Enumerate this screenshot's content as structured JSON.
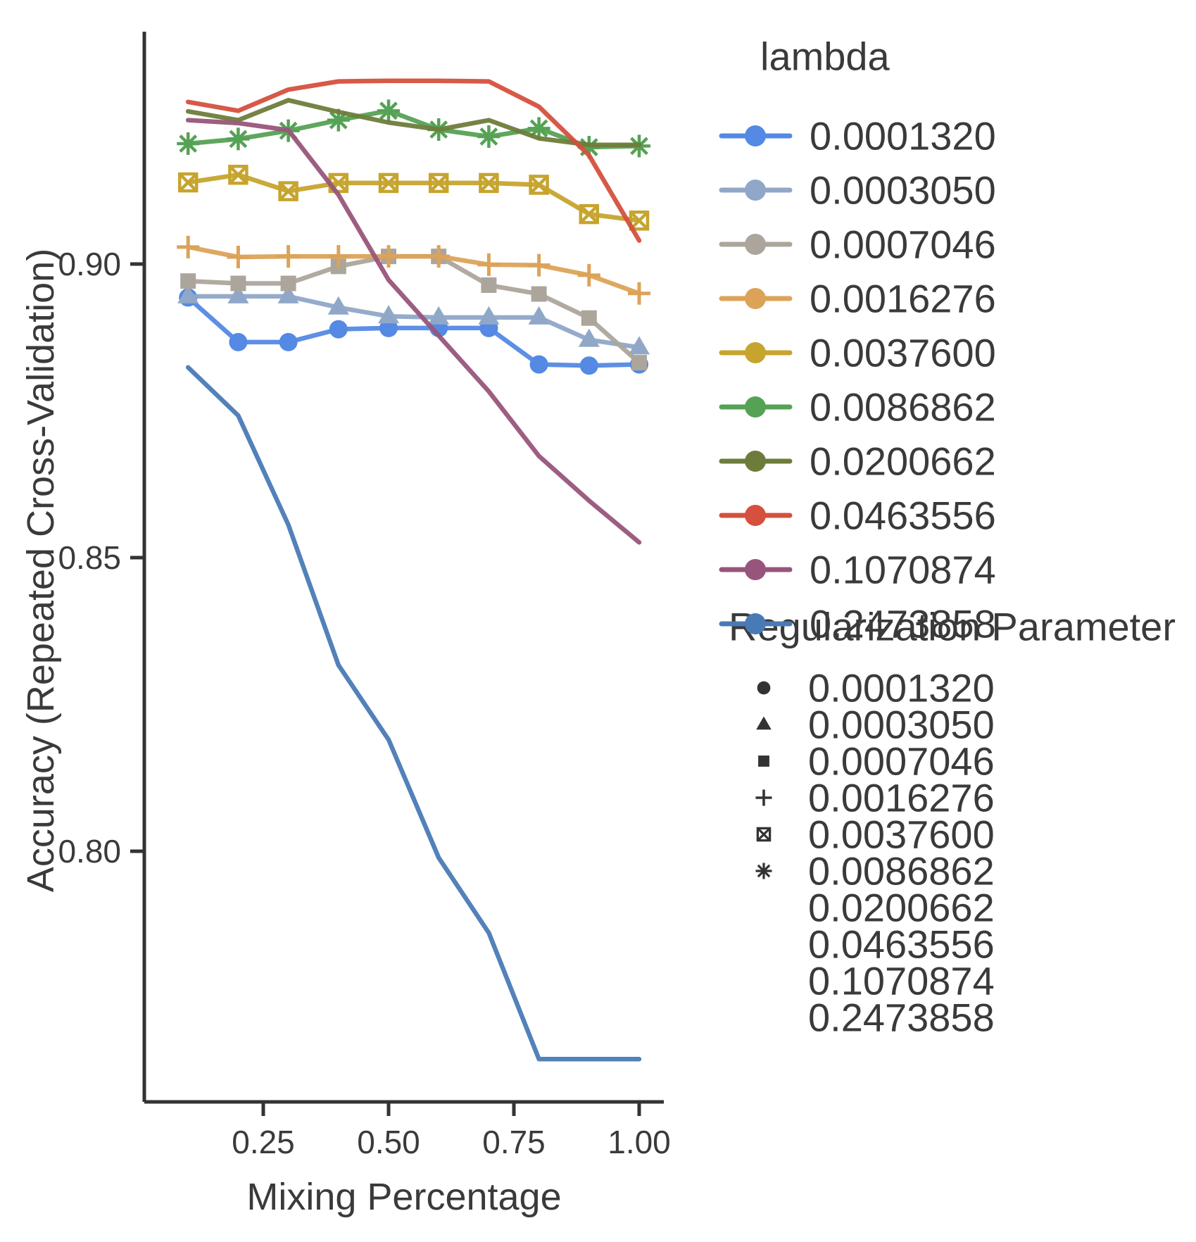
{
  "figure": {
    "xlabel": "Mixing Percentage",
    "ylabel": "Accuracy (Repeated Cross-Validation)",
    "color_legend_title": "lambda",
    "shape_legend_title": "Regularization Parameter",
    "text_color": "#3a3a3a",
    "axis_color": "#333333"
  },
  "chart_data": {
    "type": "line",
    "title": "",
    "xlabel": "Mixing Percentage",
    "ylabel": "Accuracy (Repeated Cross-Validation)",
    "grid": "off",
    "legend_position": "right",
    "xlim": [
      0.013,
      1.049
    ],
    "ylim": [
      0.757,
      0.94
    ],
    "x_ticks": [
      {
        "v": 0.25,
        "label": "0.25"
      },
      {
        "v": 0.5,
        "label": "0.50"
      },
      {
        "v": 0.75,
        "label": "0.75"
      },
      {
        "v": 1.0,
        "label": "1.00"
      }
    ],
    "y_ticks": [
      {
        "v": 0.9,
        "label": "0.90"
      },
      {
        "v": 0.85,
        "label": "0.85"
      },
      {
        "v": 0.8,
        "label": "0.80"
      }
    ],
    "x": [
      0.1,
      0.2,
      0.3,
      0.4,
      0.5,
      0.6,
      0.7,
      0.8,
      0.9,
      1.0
    ],
    "series": [
      {
        "name": "0.0001320",
        "color": "#5489E4",
        "shape": "circle",
        "values": [
          0.8943,
          0.8867,
          0.8867,
          0.8889,
          0.8891,
          0.8891,
          0.8891,
          0.8829,
          0.8827,
          0.8829
        ]
      },
      {
        "name": "0.0003050",
        "color": "#90A7C8",
        "shape": "triangle",
        "values": [
          0.8945,
          0.8945,
          0.8945,
          0.8926,
          0.8911,
          0.8909,
          0.8909,
          0.8909,
          0.8871,
          0.8858
        ]
      },
      {
        "name": "0.0007046",
        "color": "#ACA59B",
        "shape": "square",
        "values": [
          0.8971,
          0.8967,
          0.8967,
          0.8996,
          0.9013,
          0.9013,
          0.8964,
          0.8949,
          0.8908,
          0.8832
        ]
      },
      {
        "name": "0.0016276",
        "color": "#DCA358",
        "shape": "plus",
        "values": [
          0.9029,
          0.9012,
          0.9013,
          0.9013,
          0.9013,
          0.9013,
          0.8999,
          0.8998,
          0.8981,
          0.895
        ]
      },
      {
        "name": "0.0037600",
        "color": "#C6A42E",
        "shape": "boxedx",
        "values": [
          0.9139,
          0.9152,
          0.9124,
          0.9138,
          0.9138,
          0.9138,
          0.9138,
          0.9135,
          0.9085,
          0.9074
        ]
      },
      {
        "name": "0.0086862",
        "color": "#55A254",
        "shape": "asterisk",
        "values": [
          0.9205,
          0.9213,
          0.9227,
          0.9245,
          0.9261,
          0.9229,
          0.9217,
          0.9231,
          0.9199,
          0.9201
        ]
      },
      {
        "name": "0.0200662",
        "color": "#6E7C3B",
        "shape": "none",
        "values": [
          0.926,
          0.9245,
          0.9279,
          0.9259,
          0.9241,
          0.9229,
          0.9245,
          0.9214,
          0.9203,
          0.9203
        ]
      },
      {
        "name": "0.0463556",
        "color": "#D5503E",
        "shape": "none",
        "values": [
          0.9276,
          0.9261,
          0.9297,
          0.9311,
          0.9312,
          0.9312,
          0.9311,
          0.9268,
          0.9185,
          0.904
        ]
      },
      {
        "name": "0.1070874",
        "color": "#98557B",
        "shape": "none",
        "values": [
          0.9245,
          0.924,
          0.9228,
          0.9118,
          0.8973,
          0.8878,
          0.8783,
          0.8673,
          0.8597,
          0.8526
        ]
      },
      {
        "name": "0.2473858",
        "color": "#4A7AB5",
        "shape": "none",
        "values": [
          0.8824,
          0.8742,
          0.8556,
          0.8317,
          0.819,
          0.7989,
          0.7861,
          0.7646,
          0.7646,
          0.7646
        ]
      }
    ],
    "shape_legend": [
      {
        "name": "0.0001320",
        "shape": "circle"
      },
      {
        "name": "0.0003050",
        "shape": "triangle"
      },
      {
        "name": "0.0007046",
        "shape": "square"
      },
      {
        "name": "0.0016276",
        "shape": "plus"
      },
      {
        "name": "0.0037600",
        "shape": "boxedx"
      },
      {
        "name": "0.0086862",
        "shape": "asterisk"
      },
      {
        "name": "0.0200662",
        "shape": "none"
      },
      {
        "name": "0.0463556",
        "shape": "none"
      },
      {
        "name": "0.1070874",
        "shape": "none"
      },
      {
        "name": "0.2473858",
        "shape": "none"
      }
    ]
  }
}
